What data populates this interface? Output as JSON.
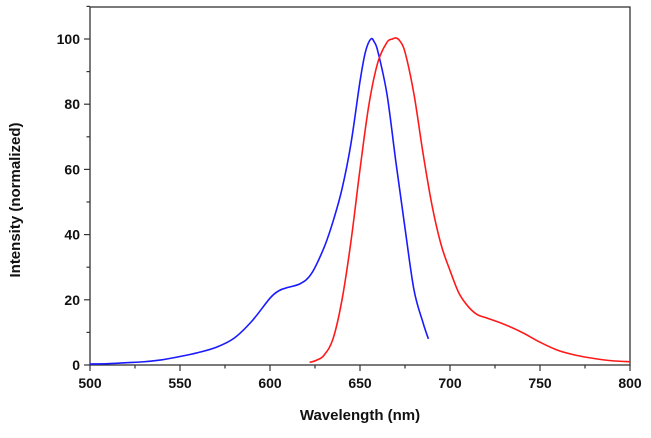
{
  "chart_data": {
    "type": "line",
    "title": "",
    "xlabel": "Wavelength (nm)",
    "ylabel": "Intensity (normalized)",
    "xlim": [
      500,
      800
    ],
    "ylim": [
      0,
      110
    ],
    "xticks": [
      500,
      550,
      600,
      650,
      700,
      750,
      800
    ],
    "yticks": [
      0,
      20,
      40,
      60,
      80,
      100
    ],
    "grid": false,
    "series": [
      {
        "name": "blue",
        "color": "#1a1aff",
        "x": [
          500,
          510,
          520,
          530,
          540,
          550,
          560,
          570,
          580,
          590,
          600,
          605,
          610,
          617,
          623,
          630,
          635,
          640,
          645,
          650,
          653,
          656,
          658,
          660,
          665,
          670,
          675,
          680,
          685,
          688
        ],
        "y": [
          0.3,
          0.4,
          0.7,
          1.0,
          1.6,
          2.6,
          3.8,
          5.4,
          8.2,
          13.5,
          20.5,
          22.8,
          23.8,
          25,
          28,
          36,
          44,
          54,
          68,
          87,
          96,
          100,
          99,
          96,
          83,
          62,
          42,
          23,
          13,
          8
        ]
      },
      {
        "name": "red",
        "color": "#ff1a1a",
        "x": [
          622,
          626,
          630,
          635,
          640,
          645,
          650,
          655,
          660,
          665,
          668,
          670,
          672,
          675,
          680,
          685,
          690,
          695,
          700,
          705,
          710,
          715,
          720,
          730,
          740,
          750,
          760,
          770,
          780,
          790,
          800
        ],
        "y": [
          0.8,
          1.5,
          3,
          8,
          20,
          38,
          60,
          80,
          93,
          99,
          100,
          100.3,
          99.5,
          96,
          83,
          65,
          49,
          37,
          29,
          22,
          18,
          15.5,
          14.5,
          12.5,
          10,
          7,
          4.5,
          3,
          2,
          1.3,
          1
        ]
      }
    ]
  }
}
